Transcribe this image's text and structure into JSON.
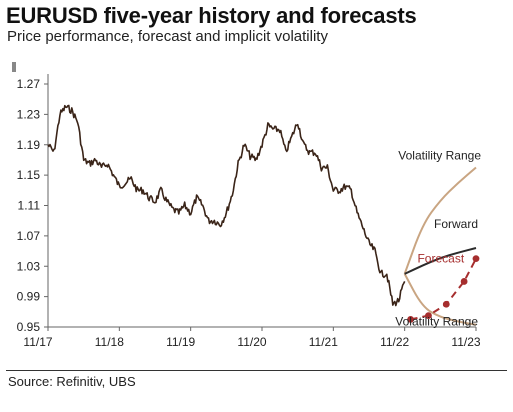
{
  "header": {
    "title": "EURUSD five-year history and forecasts",
    "subtitle": "Price performance, forecast and implicit volatility"
  },
  "footer": {
    "source": "Source: Refinitiv, UBS"
  },
  "colors": {
    "history": "#3a2418",
    "forward": "#2b2b2b",
    "volatility_range": "#c9a582",
    "forecast": "#a62e2e",
    "axis": "#666666"
  },
  "chart_data": {
    "type": "line",
    "title": "EURUSD five-year history and forecasts",
    "subtitle": "Price performance, forecast and implicit volatility",
    "xlabel": "",
    "ylabel": "",
    "x_ticks": [
      "11/17",
      "11/18",
      "11/19",
      "11/20",
      "11/21",
      "11/22",
      "11/23"
    ],
    "y_ticks": [
      1.27,
      1.23,
      1.19,
      1.15,
      1.11,
      1.07,
      1.03,
      0.99,
      0.95
    ],
    "ylim": [
      0.95,
      1.27
    ],
    "xlim": [
      "2017-11",
      "2023-11"
    ],
    "grid": false,
    "legend": "none",
    "series": [
      {
        "name": "",
        "kind": "history",
        "x": [
          "2017-11",
          "2017-12",
          "2018-01",
          "2018-02",
          "2018-03",
          "2018-04",
          "2018-05",
          "2018-06",
          "2018-07",
          "2018-08",
          "2018-09",
          "2018-10",
          "2018-11",
          "2018-12",
          "2019-01",
          "2019-02",
          "2019-03",
          "2019-04",
          "2019-05",
          "2019-06",
          "2019-07",
          "2019-08",
          "2019-09",
          "2019-10",
          "2019-11",
          "2019-12",
          "2020-01",
          "2020-02",
          "2020-03",
          "2020-04",
          "2020-05",
          "2020-06",
          "2020-07",
          "2020-08",
          "2020-09",
          "2020-10",
          "2020-11",
          "2020-12",
          "2021-01",
          "2021-02",
          "2021-03",
          "2021-04",
          "2021-05",
          "2021-06",
          "2021-07",
          "2021-08",
          "2021-09",
          "2021-10",
          "2021-11",
          "2021-12",
          "2022-01",
          "2022-02",
          "2022-03",
          "2022-04",
          "2022-05",
          "2022-06",
          "2022-07",
          "2022-08",
          "2022-09",
          "2022-10",
          "2022-11"
        ],
        "y": [
          1.19,
          1.18,
          1.23,
          1.24,
          1.235,
          1.22,
          1.17,
          1.165,
          1.17,
          1.16,
          1.165,
          1.15,
          1.135,
          1.14,
          1.145,
          1.13,
          1.13,
          1.12,
          1.115,
          1.13,
          1.115,
          1.105,
          1.1,
          1.11,
          1.1,
          1.12,
          1.11,
          1.09,
          1.09,
          1.085,
          1.1,
          1.125,
          1.165,
          1.19,
          1.175,
          1.17,
          1.19,
          1.215,
          1.21,
          1.21,
          1.18,
          1.2,
          1.22,
          1.19,
          1.18,
          1.18,
          1.16,
          1.16,
          1.13,
          1.13,
          1.135,
          1.13,
          1.1,
          1.08,
          1.06,
          1.05,
          1.02,
          1.02,
          0.98,
          0.985,
          1.01
        ]
      },
      {
        "name": "Forward",
        "x": [
          "2022-11",
          "2023-02",
          "2023-05",
          "2023-08",
          "2023-11"
        ],
        "y": [
          1.02,
          1.031,
          1.041,
          1.048,
          1.054
        ]
      },
      {
        "name": "Volatility Range (upper)",
        "x": [
          "2022-11",
          "2023-02",
          "2023-05",
          "2023-08",
          "2023-11"
        ],
        "y": [
          1.02,
          1.085,
          1.117,
          1.14,
          1.16
        ]
      },
      {
        "name": "Volatility Range (lower)",
        "x": [
          "2022-11",
          "2023-02",
          "2023-05",
          "2023-08",
          "2023-11"
        ],
        "y": [
          1.02,
          0.976,
          0.963,
          0.957,
          0.953
        ]
      },
      {
        "name": "Forecast",
        "x": [
          "2022-12",
          "2023-03",
          "2023-06",
          "2023-09",
          "2023-11"
        ],
        "y": [
          0.96,
          0.965,
          0.98,
          1.01,
          1.04
        ]
      }
    ],
    "annotations": {
      "volatility_upper": "Volatility Range",
      "forward": "Forward",
      "forecast": "Forecast",
      "volatility_lower": "Volatility Range"
    }
  }
}
